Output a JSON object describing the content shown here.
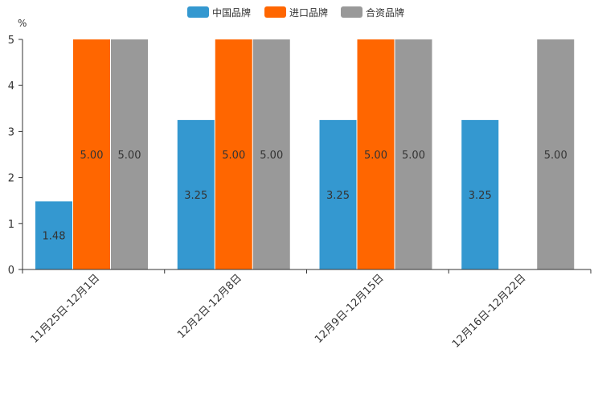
{
  "chart_data": {
    "type": "bar",
    "title": "",
    "xlabel": "",
    "ylabel": "%",
    "ylim": [
      0,
      5
    ],
    "yticks": [
      0,
      1,
      2,
      3,
      4,
      5
    ],
    "grid": false,
    "legend_position": "top-center",
    "categories": [
      "11月25日-12月1日",
      "12月2日-12月8日",
      "12月9日-12月15日",
      "12月16日-12月22日"
    ],
    "series": [
      {
        "name": "中国品牌",
        "color": "#3498d0",
        "values": [
          1.48,
          3.25,
          3.25,
          3.25
        ],
        "labels": [
          "1.48",
          "3.25",
          "3.25",
          "3.25"
        ]
      },
      {
        "name": "进口品牌",
        "color": "#ff6600",
        "values": [
          5.0,
          5.0,
          5.0,
          null
        ],
        "labels": [
          "5.00",
          "5.00",
          "5.00",
          null
        ]
      },
      {
        "name": "合资品牌",
        "color": "#999999",
        "values": [
          5.0,
          5.0,
          5.0,
          5.0
        ],
        "labels": [
          "5.00",
          "5.00",
          "5.00",
          "5.00"
        ]
      }
    ]
  }
}
